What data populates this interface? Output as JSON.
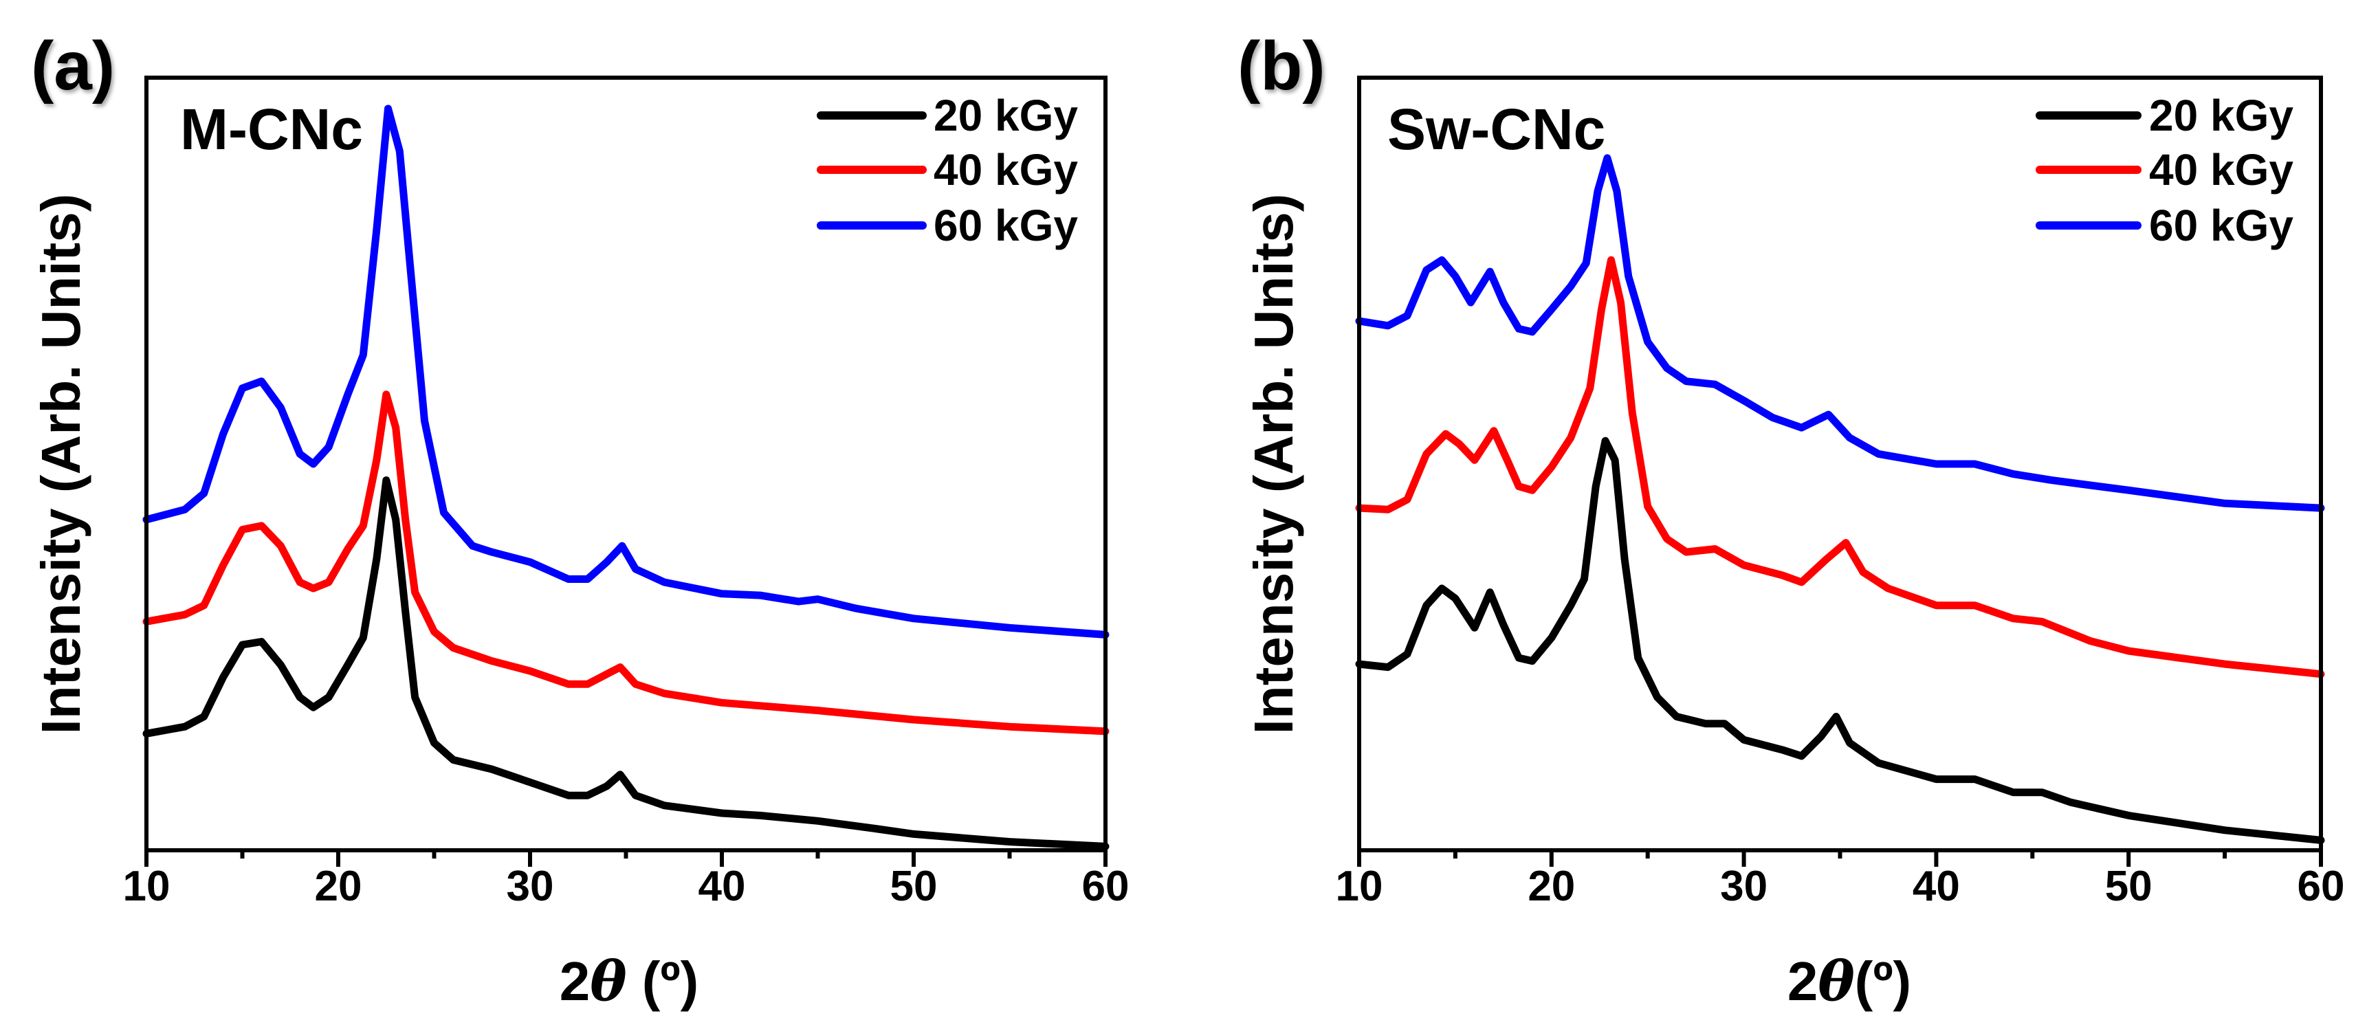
{
  "chart_data": [
    {
      "type": "line",
      "panel_label": "(a)",
      "title": "M-CNc",
      "xlabel_prefix": "2",
      "xlabel_symbol": "θ",
      "xlabel_suffix": " (º)",
      "ylabel": "Intensity (Arb. Units)",
      "xlim": [
        10,
        60
      ],
      "ylim": [
        0,
        100
      ],
      "xticks": [
        "10",
        "20",
        "30",
        "40",
        "50",
        "60"
      ],
      "legend_position": "top-right",
      "series": [
        {
          "name": "20 kGy",
          "color": "#000000",
          "x": [
            10,
            12,
            13,
            14,
            15,
            16,
            17,
            18,
            18.7,
            19.5,
            20.5,
            21.3,
            22,
            22.5,
            23,
            23.5,
            24,
            25,
            26,
            28,
            30,
            32,
            33,
            34,
            34.7,
            35.5,
            37,
            40,
            42,
            45,
            48,
            50,
            55,
            60
          ],
          "y": [
            15.1,
            16,
            17.3,
            22.4,
            26.6,
            27,
            24,
            19.8,
            18.5,
            19.8,
            24,
            27.5,
            37.7,
            47.9,
            42.8,
            30.9,
            19.8,
            13.9,
            11.7,
            10.5,
            8.8,
            7.1,
            7.1,
            8.3,
            9.8,
            7.1,
            5.8,
            4.8,
            4.5,
            3.8,
            2.8,
            2.1,
            1.1,
            0.5
          ]
        },
        {
          "name": "40 kGy",
          "color": "#ff0000",
          "x": [
            10,
            12,
            13,
            14,
            15,
            16,
            17,
            18,
            18.7,
            19.5,
            20.5,
            21.3,
            22,
            22.5,
            23,
            23.5,
            24,
            25,
            26,
            28,
            30,
            32,
            33,
            34,
            34.7,
            35.5,
            37,
            40,
            45,
            50,
            55,
            60
          ],
          "y": [
            29.6,
            30.5,
            31.7,
            36.9,
            41.5,
            42,
            39.4,
            34.7,
            33.9,
            34.7,
            39,
            42,
            50.5,
            59,
            54.7,
            42.8,
            33.4,
            28.3,
            26.2,
            24.5,
            23.2,
            21.5,
            21.5,
            22.8,
            23.7,
            21.5,
            20.3,
            19.1,
            18.1,
            16.9,
            16,
            15.4
          ]
        },
        {
          "name": "60 kGy",
          "color": "#0000ff",
          "x": [
            10,
            12,
            13,
            14,
            15,
            16,
            17,
            18,
            18.7,
            19.5,
            20.5,
            21.3,
            22,
            22.6,
            23.2,
            23.8,
            24.5,
            25.5,
            27,
            28,
            30,
            32,
            33,
            34,
            34.8,
            35.5,
            37,
            40,
            42,
            44,
            45,
            47,
            50,
            55,
            60
          ],
          "y": [
            42.8,
            44.1,
            46.2,
            53.9,
            59.8,
            60.7,
            57.3,
            51.3,
            50,
            52.2,
            59,
            64.1,
            80.3,
            96,
            90.5,
            74.3,
            55.6,
            43.7,
            39.4,
            38.6,
            37.3,
            35.1,
            35.1,
            37.3,
            39.4,
            36.4,
            34.7,
            33.2,
            33,
            32.2,
            32.5,
            31.3,
            30,
            28.8,
            27.9
          ]
        }
      ]
    },
    {
      "type": "line",
      "panel_label": "(b)",
      "title": "Sw-CNc",
      "xlabel_prefix": "2",
      "xlabel_symbol": "θ",
      "xlabel_suffix": "(º)",
      "ylabel": "Intensity (Arb. Units)",
      "xlim": [
        10,
        60
      ],
      "ylim": [
        0,
        100
      ],
      "xticks": [
        "10",
        "20",
        "30",
        "40",
        "50",
        "60"
      ],
      "legend_position": "top-right",
      "series": [
        {
          "name": "20 kGy",
          "color": "#000000",
          "x": [
            10,
            11.5,
            12.5,
            13.5,
            14.3,
            15,
            16,
            16.8,
            17.5,
            18.3,
            19,
            20,
            21,
            21.7,
            22.3,
            22.8,
            23.3,
            23.8,
            24.5,
            25.5,
            26.5,
            28,
            29,
            30,
            32,
            33,
            34,
            34.8,
            35.5,
            37,
            40,
            42,
            44,
            45.5,
            47,
            50,
            55,
            60
          ],
          "y": [
            24.1,
            23.7,
            25.4,
            31.7,
            33.9,
            32.6,
            28.8,
            33.4,
            29.2,
            24.9,
            24.5,
            27.5,
            31.7,
            35.1,
            47.1,
            53,
            50.5,
            37.7,
            24.9,
            19.8,
            17.3,
            16.4,
            16.4,
            14.3,
            13,
            12.2,
            14.7,
            17.3,
            13.9,
            11.3,
            9.2,
            9.2,
            7.5,
            7.5,
            6.2,
            4.5,
            2.6,
            1.3
          ]
        },
        {
          "name": "40 kGy",
          "color": "#ff0000",
          "x": [
            10,
            11.5,
            12.5,
            13.5,
            14.5,
            15.2,
            16,
            17,
            17.7,
            18.3,
            19,
            20,
            21,
            22,
            22.6,
            23.1,
            23.6,
            24.2,
            25,
            26,
            27,
            28.5,
            30,
            32,
            33,
            34.3,
            35.3,
            36.2,
            37.5,
            40,
            42,
            44,
            45.5,
            48,
            50,
            55,
            60
          ],
          "y": [
            44.3,
            44.1,
            45.4,
            51.3,
            53.9,
            52.6,
            50.5,
            54.3,
            50.5,
            47.1,
            46.6,
            49.6,
            53.4,
            59.8,
            70,
            76.4,
            70.9,
            56.6,
            44.5,
            40.3,
            38.6,
            39,
            36.9,
            35.6,
            34.7,
            37.7,
            39.8,
            36,
            33.9,
            31.7,
            31.7,
            30,
            29.6,
            27.1,
            25.8,
            24.1,
            22.8
          ]
        },
        {
          "name": "60 kGy",
          "color": "#0000ff",
          "x": [
            10,
            11.5,
            12.5,
            13.5,
            14.3,
            15,
            15.8,
            16.8,
            17.5,
            18.3,
            19,
            20,
            21,
            21.8,
            22.4,
            22.9,
            23.4,
            24,
            25,
            26,
            27,
            28.5,
            30,
            31.5,
            33,
            34.4,
            35.5,
            37,
            40,
            42,
            44,
            46,
            50,
            55,
            60
          ],
          "y": [
            68.5,
            67.9,
            69.2,
            75.1,
            76.4,
            74.3,
            70.9,
            74.9,
            70.9,
            67.5,
            67.1,
            70,
            73,
            76,
            85.3,
            89.6,
            85.3,
            74.3,
            65.8,
            62.4,
            60.7,
            60.3,
            58.2,
            56,
            54.7,
            56.4,
            53.4,
            51.3,
            50,
            50,
            48.7,
            47.9,
            46.6,
            44.9,
            44.3
          ]
        }
      ]
    }
  ]
}
